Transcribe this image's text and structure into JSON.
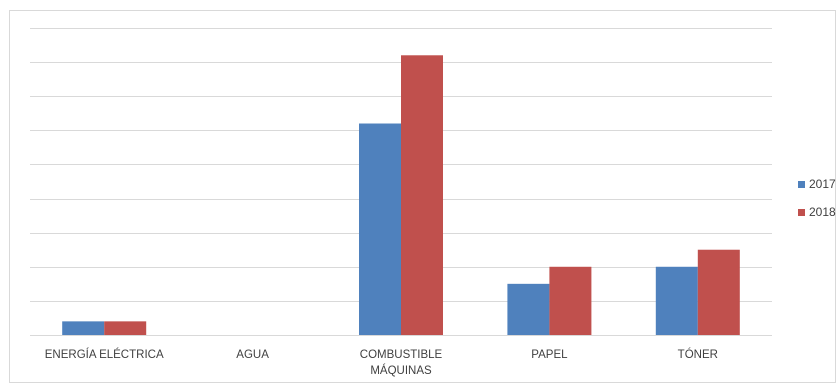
{
  "chart_data": {
    "type": "bar",
    "categories": [
      [
        "ENERGÍA ELÉCTRICA"
      ],
      [
        "AGUA"
      ],
      [
        "COMBUSTIBLE",
        "MÁQUINAS"
      ],
      [
        "PAPEL"
      ],
      [
        "TÓNER"
      ]
    ],
    "series": [
      {
        "name": "2017",
        "color": "#4F81BD",
        "values": [
          0.4,
          0,
          6.2,
          1.5,
          2.0
        ]
      },
      {
        "name": "2018",
        "color": "#C0504D",
        "values": [
          0.4,
          0,
          8.2,
          2.0,
          2.5
        ]
      }
    ],
    "ylim": [
      0,
      9
    ],
    "grid": true,
    "legend": "right"
  }
}
